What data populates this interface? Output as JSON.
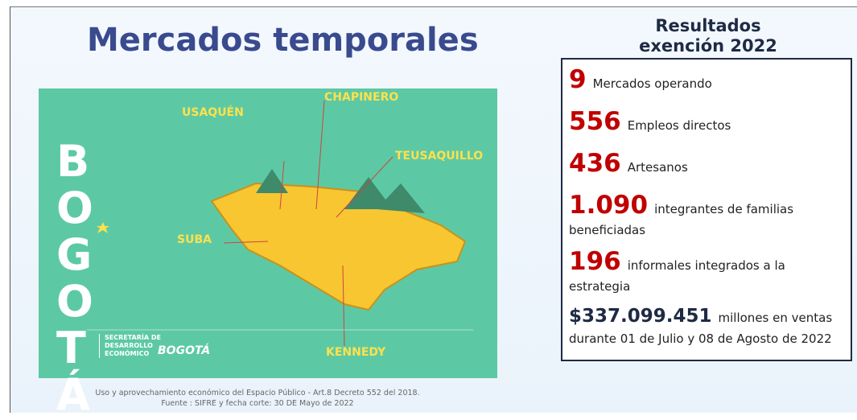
{
  "title": "Mercados temporales",
  "map": {
    "wordmark": "BOGOTÁ",
    "localities": [
      "USAQUÉN",
      "CHAPINERO",
      "TEUSAQUILLO",
      "SUBA",
      "KENNEDY"
    ],
    "secretaria": "SECRETARÍA DE DESARROLLO ECONÓMICO",
    "logo": "BOGOTÁ"
  },
  "source": "Uso y aprovechamiento económico del Espacio Público -  Art.8  Decreto 552 del 2018.  Fuente : SIFRE y fecha corte: 30 DE Mayo de 2022",
  "results": {
    "title": "Resultados exención 2022",
    "items": [
      {
        "number": "9",
        "text": "Mercados operando"
      },
      {
        "number": "556",
        "text": "Empleos directos"
      },
      {
        "number": "436",
        "text": "Artesanos"
      },
      {
        "number": "1.090",
        "text": "integrantes de familias beneficiadas"
      },
      {
        "number": "196",
        "text": "informales integrados a la estrategia"
      },
      {
        "number": "$337.099.451",
        "text": "millones en ventas durante 01 de Julio y 08 de Agosto de 2022"
      }
    ]
  }
}
